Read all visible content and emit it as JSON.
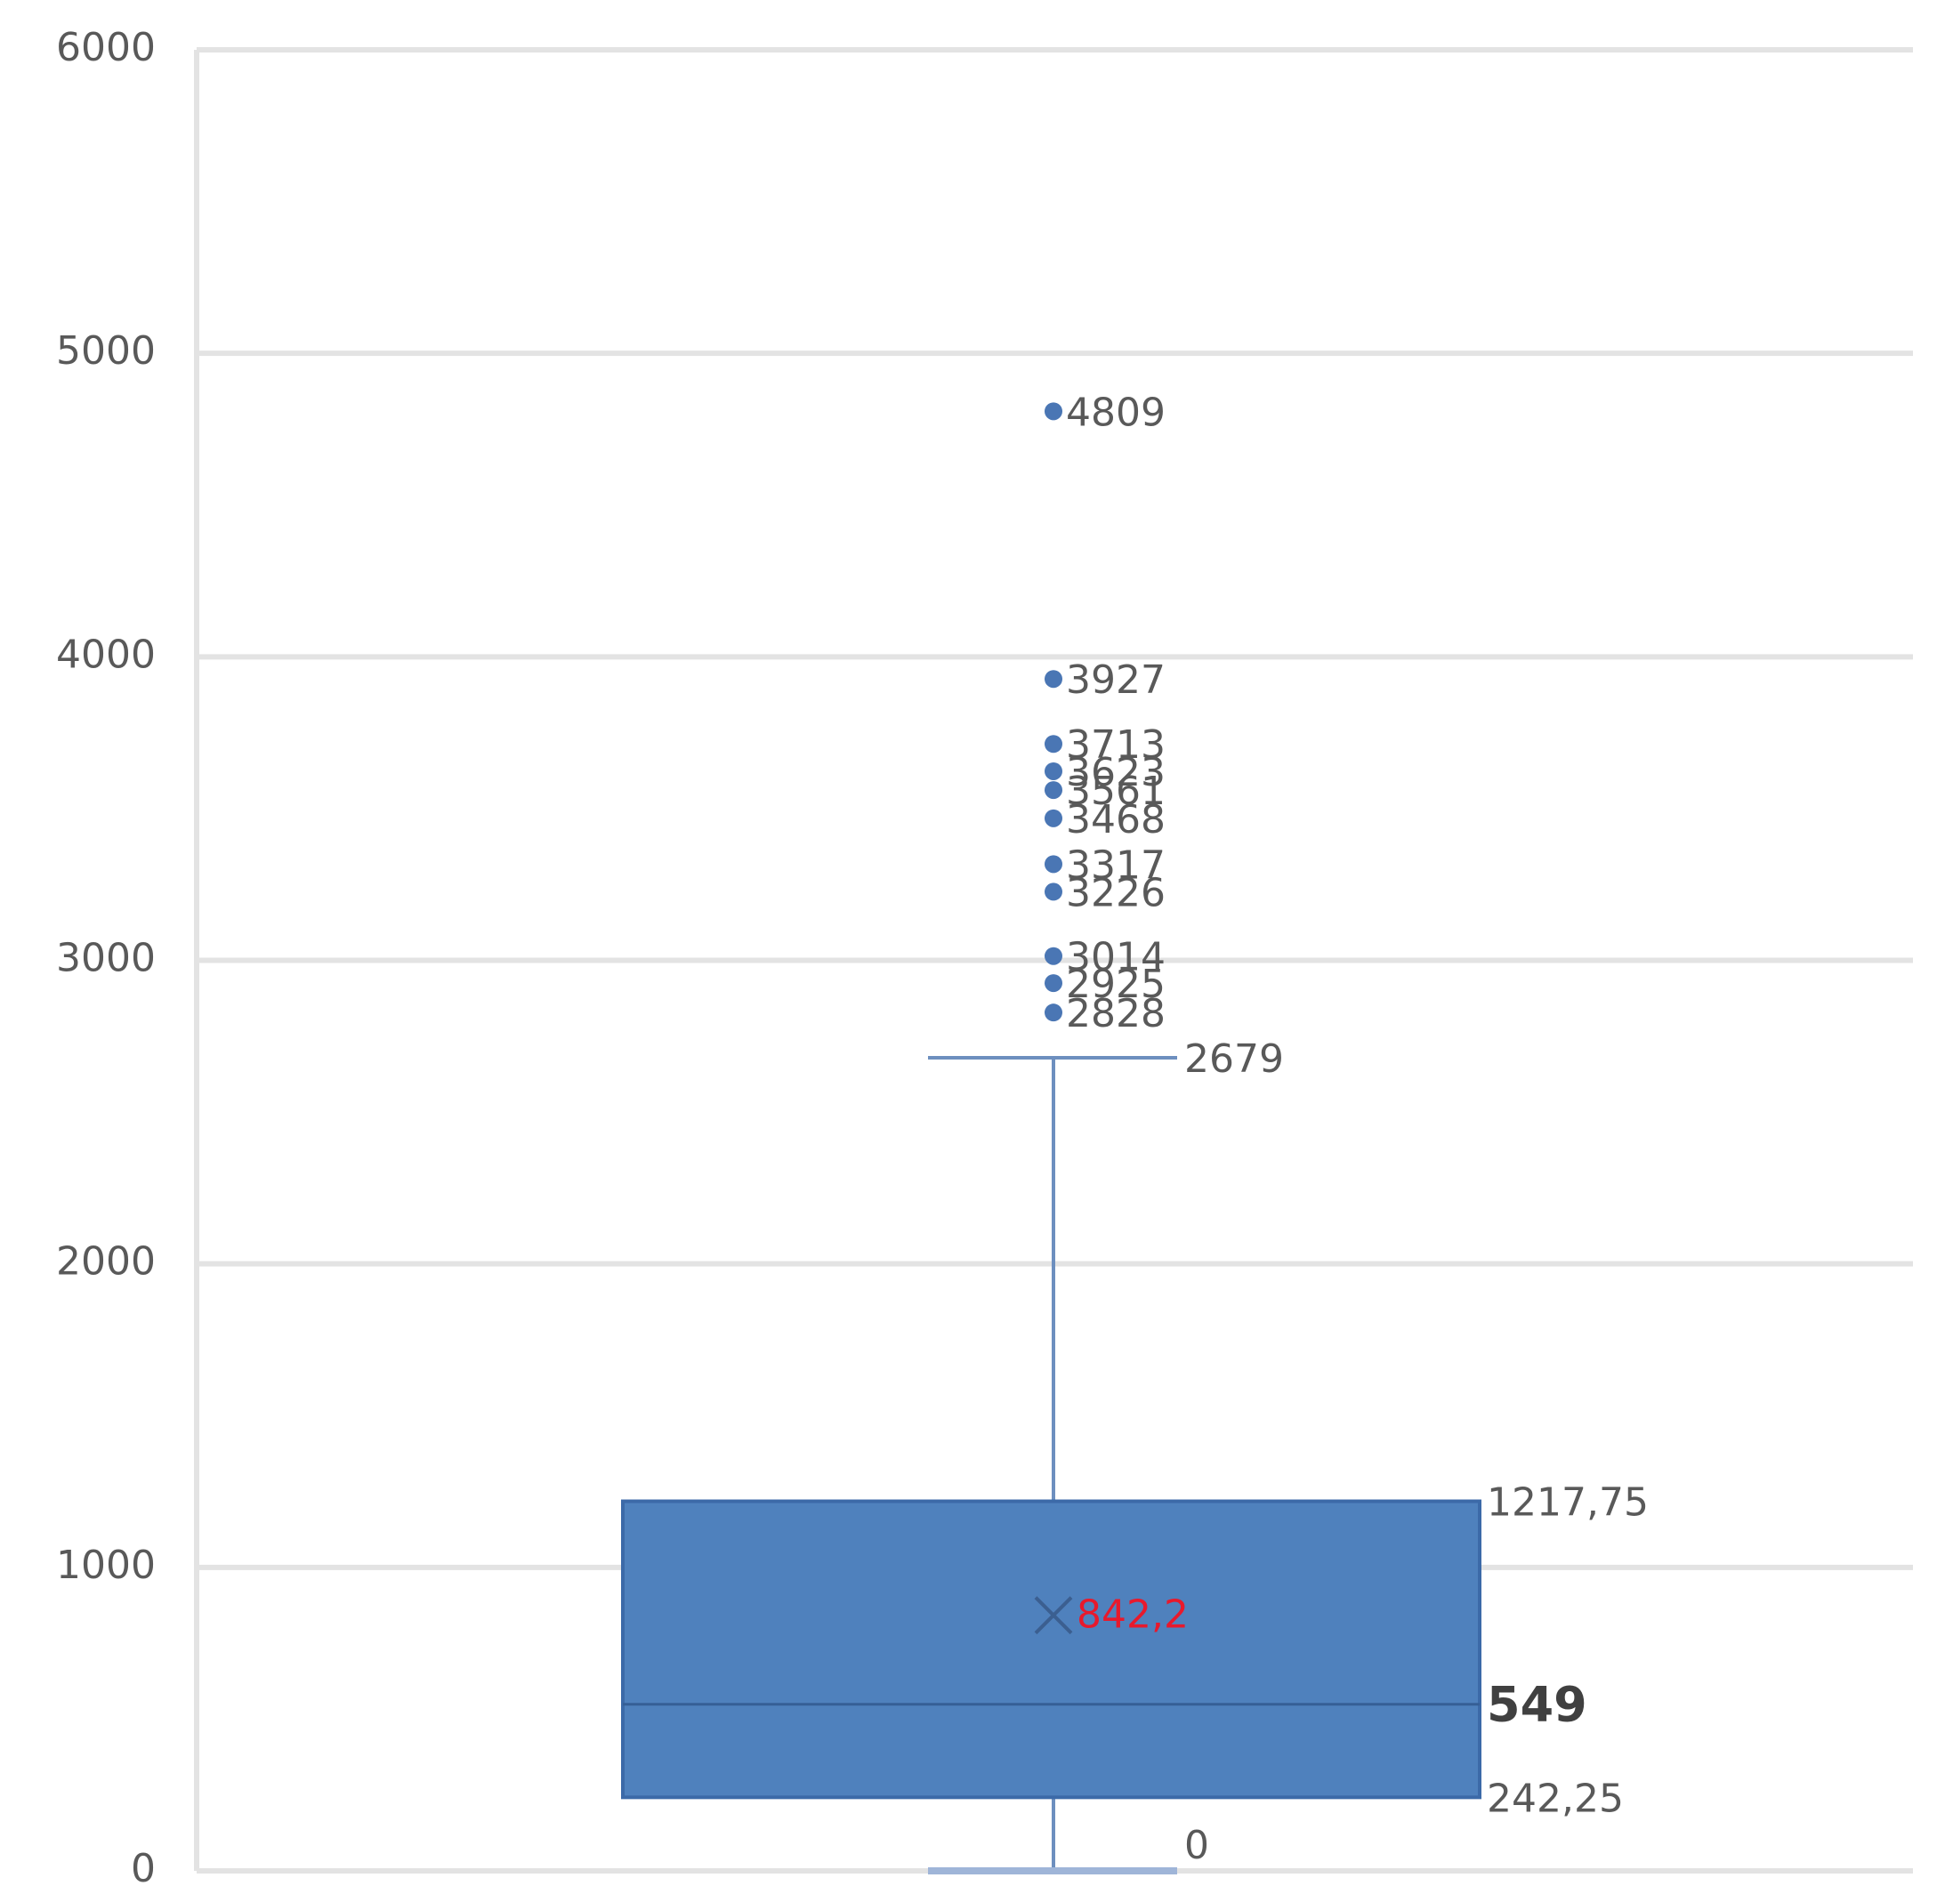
{
  "chart_data": {
    "type": "box",
    "color": "#4f81bd",
    "min": 0,
    "q1": 242.25,
    "median": 549,
    "q3": 1217.75,
    "max": 2679,
    "mean": 842.2,
    "value_labels": {
      "q1": "242,25",
      "q3": "1217,75",
      "mean": "842,2"
    },
    "outliers": [
      4809,
      3927,
      3713,
      3623,
      3561,
      3468,
      3317,
      3226,
      3014,
      2925,
      2828
    ],
    "ylim": [
      0,
      6000
    ],
    "yticks": [
      0,
      1000,
      2000,
      3000,
      4000,
      5000,
      6000
    ],
    "grid": true
  }
}
